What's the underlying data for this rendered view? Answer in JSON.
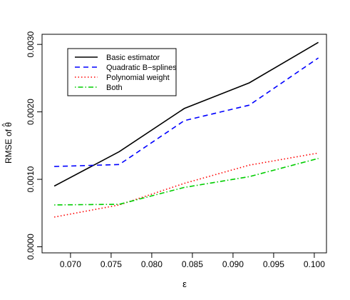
{
  "chart_data": {
    "type": "line",
    "title": "",
    "xlabel": "ε",
    "ylabel": "RMSE of ",
    "ylabel_symbol": "θ",
    "ylabel_accent": "^",
    "xlim": [
      0.0665,
      0.1015
    ],
    "ylim": [
      -9e-05,
      0.00315
    ],
    "x_ticks": [
      0.07,
      0.075,
      0.08,
      0.085,
      0.09,
      0.095,
      0.1
    ],
    "x_tick_labels": [
      "0.070",
      "0.075",
      "0.080",
      "0.085",
      "0.090",
      "0.095",
      "0.100"
    ],
    "y_ticks": [
      0.0,
      0.001,
      0.002,
      0.003
    ],
    "y_tick_labels": [
      "0.0000",
      "0.0010",
      "0.0020",
      "0.0030"
    ],
    "grid": false,
    "legend_position": "top-left",
    "x": [
      0.068,
      0.076,
      0.084,
      0.092,
      0.1005
    ],
    "series": [
      {
        "name": "Basic estimator",
        "values": [
          0.0009,
          0.00141,
          0.00205,
          0.00243,
          0.00303
        ],
        "color": "#000000",
        "dash": "solid"
      },
      {
        "name": "Quadratic B−splines",
        "values": [
          0.00119,
          0.00122,
          0.00187,
          0.0021,
          0.0028
        ],
        "color": "#0000ff",
        "dash": "dashed"
      },
      {
        "name": "Polynomial weight",
        "values": [
          0.00044,
          0.00062,
          0.00094,
          0.00121,
          0.00139
        ],
        "color": "#ff0000",
        "dash": "dotted"
      },
      {
        "name": "Both",
        "values": [
          0.00062,
          0.00063,
          0.00088,
          0.00104,
          0.00131
        ],
        "color": "#00cd00",
        "dash": "dotdash"
      }
    ]
  }
}
